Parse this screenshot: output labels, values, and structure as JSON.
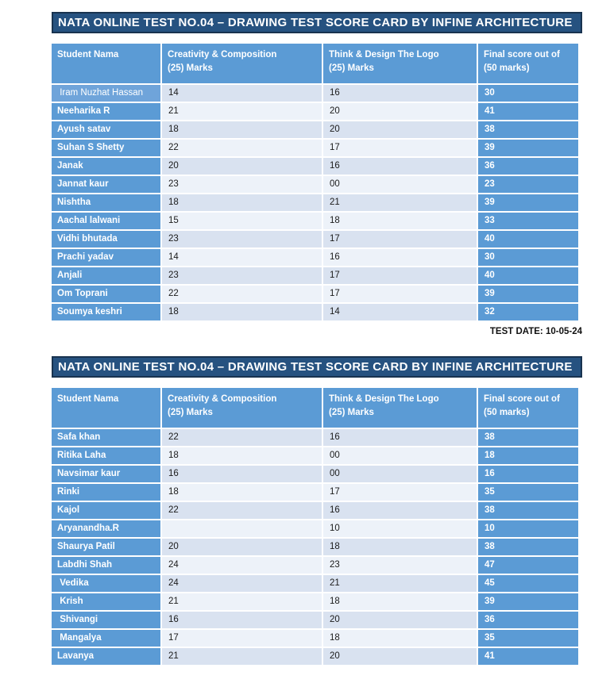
{
  "card_title": "NATA ONLINE TEST NO.04 – DRAWING TEST SCORE CARD BY INFINE ARCHITECTURE",
  "test_date": "TEST DATE: 10-05-24",
  "columns": {
    "student": "Student Nama",
    "creativity": "Creativity & Composition\n(25) Marks",
    "logo": "Think & Design The Logo\n(25) Marks",
    "final": "Final score out of\n(50 marks)"
  },
  "colors": {
    "title_bar": "#265280",
    "title_border": "#19334F",
    "accent": "#5B9BD5",
    "accent_light": "#6FA4DA",
    "row_dark": "#D9E2F0",
    "row_light": "#EDF2F9"
  },
  "tables": [
    {
      "rows": [
        {
          "name": " Iram Nuzhat Hassan",
          "creativity": "14",
          "logo": "16",
          "final": "30",
          "name_variant": "light"
        },
        {
          "name": "Neeharika R",
          "creativity": "21",
          "logo": "20",
          "final": "41"
        },
        {
          "name": "Ayush satav",
          "creativity": "18",
          "logo": "20",
          "final": "38"
        },
        {
          "name": "Suhan S Shetty",
          "creativity": "22",
          "logo": "17",
          "final": "39"
        },
        {
          "name": "Janak",
          "creativity": "20",
          "logo": "16",
          "final": "36"
        },
        {
          "name": "Jannat kaur",
          "creativity": "23",
          "logo": "00",
          "final": "23"
        },
        {
          "name": "Nishtha",
          "creativity": "18",
          "logo": "21",
          "final": "39"
        },
        {
          "name": "Aachal lalwani",
          "creativity": "15",
          "logo": "18",
          "final": "33"
        },
        {
          "name": "Vidhi bhutada",
          "creativity": "23",
          "logo": "17",
          "final": "40"
        },
        {
          "name": "Prachi yadav",
          "creativity": "14",
          "logo": "16",
          "final": "30"
        },
        {
          "name": "Anjali",
          "creativity": "23",
          "logo": "17",
          "final": "40"
        },
        {
          "name": "Om Toprani",
          "creativity": "22",
          "logo": "17",
          "final": "39"
        },
        {
          "name": "Soumya keshri",
          "creativity": "18",
          "logo": "14",
          "final": "32"
        }
      ]
    },
    {
      "rows": [
        {
          "name": "Safa khan",
          "creativity": "22",
          "logo": "16",
          "final": "38"
        },
        {
          "name": "Ritika Laha",
          "creativity": "18",
          "logo": "00",
          "final": "18"
        },
        {
          "name": "Navsimar kaur",
          "creativity": "16",
          "logo": "00",
          "final": "16"
        },
        {
          "name": "Rinki",
          "creativity": "18",
          "logo": "17",
          "final": "35"
        },
        {
          "name": "Kajol",
          "creativity": "22",
          "logo": "16",
          "final": "38"
        },
        {
          "name": "Aryanandha.R",
          "creativity": "",
          "logo": "10",
          "final": "10"
        },
        {
          "name": "Shaurya Patil",
          "creativity": "20",
          "logo": "18",
          "final": "38"
        },
        {
          "name": "Labdhi Shah",
          "creativity": "24",
          "logo": "23",
          "final": "47"
        },
        {
          "name": " Vedika",
          "creativity": "24",
          "logo": "21",
          "final": "45"
        },
        {
          "name": " Krish",
          "creativity": "21",
          "logo": "18",
          "final": "39"
        },
        {
          "name": " Shivangi",
          "creativity": "16",
          "logo": "20",
          "final": "36"
        },
        {
          "name": " Mangalya",
          "creativity": "17",
          "logo": "18",
          "final": "35"
        },
        {
          "name": "Lavanya",
          "creativity": "21",
          "logo": "20",
          "final": "41"
        }
      ]
    }
  ]
}
